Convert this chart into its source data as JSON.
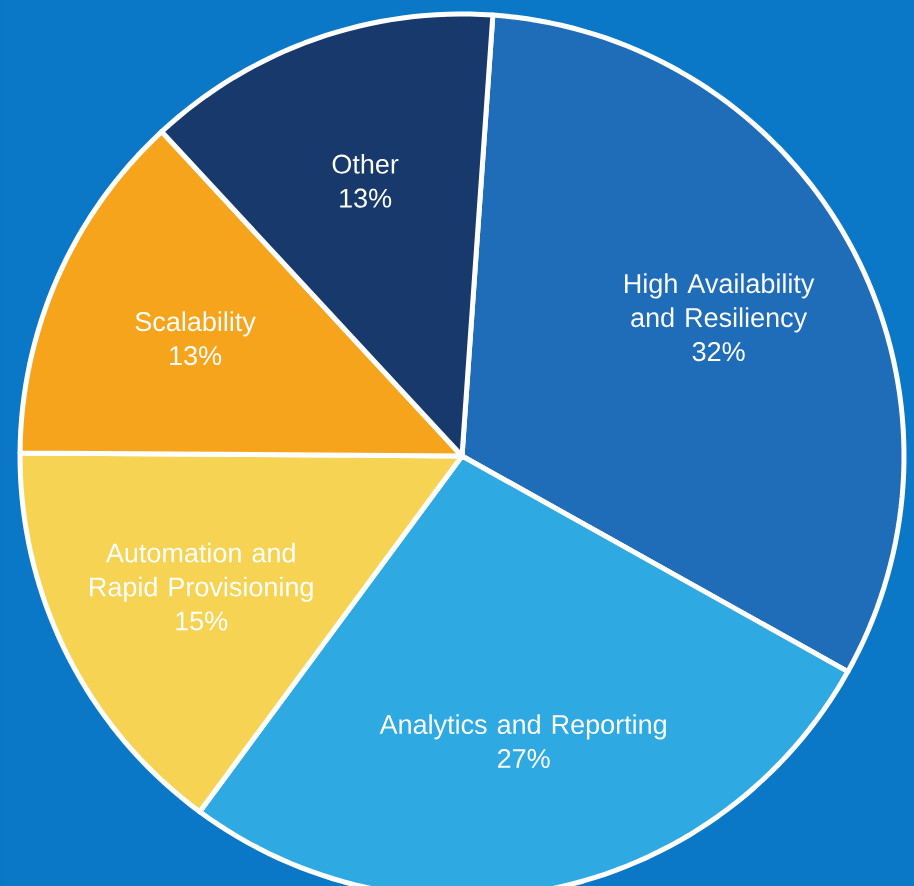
{
  "chart_data": {
    "type": "pie",
    "categories": [
      "High Availability and Resiliency",
      "Analytics and Reporting",
      "Automation and Rapid Provisioning",
      "Scalability",
      "Other"
    ],
    "values": [
      32,
      27,
      15,
      13,
      13
    ],
    "value_labels": [
      "32%",
      "27%",
      "15%",
      "13%",
      "13%"
    ],
    "colors": [
      "#1f6db8",
      "#2fa9e1",
      "#f6d352",
      "#f7a41d",
      "#17396b"
    ]
  }
}
